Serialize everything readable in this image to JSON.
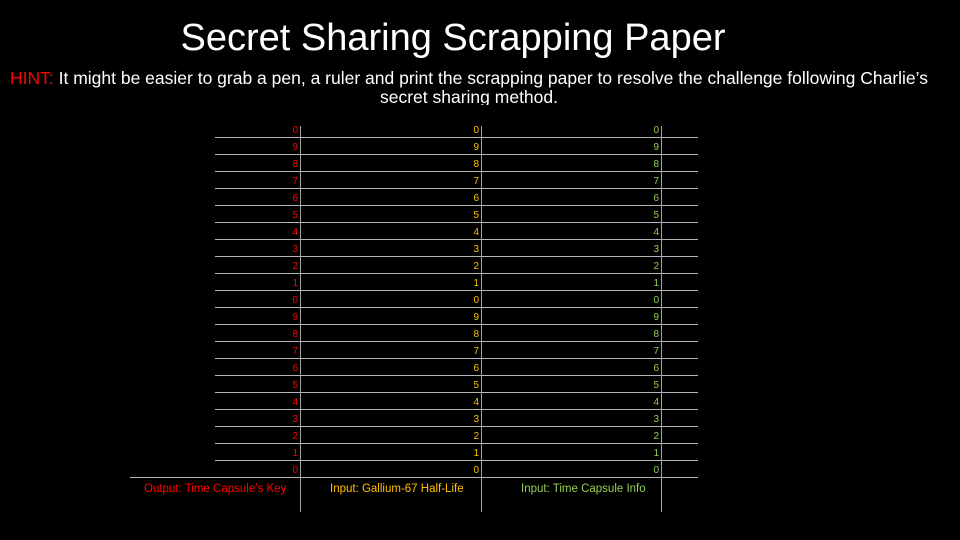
{
  "title": "Secret Sharing Scrapping Paper",
  "hint": {
    "label": "HINT:",
    "text": " It might be easier to grab a pen, a ruler and print the scrapping paper to resolve the challenge following Charlie’s secret sharing method."
  },
  "scale_digits": [
    "0",
    "9",
    "8",
    "7",
    "6",
    "5",
    "4",
    "3",
    "2",
    "1",
    "0",
    "9",
    "8",
    "7",
    "6",
    "5",
    "4",
    "3",
    "2",
    "1",
    "0"
  ],
  "columns": [
    {
      "label": "Output: Time Capsule’s Key",
      "color": "#ff0000"
    },
    {
      "label": "Input: Gallium-67 Half-Life",
      "color": "#ffc000"
    },
    {
      "label": "Input: Time Capsule Info",
      "color": "#92d050"
    }
  ]
}
